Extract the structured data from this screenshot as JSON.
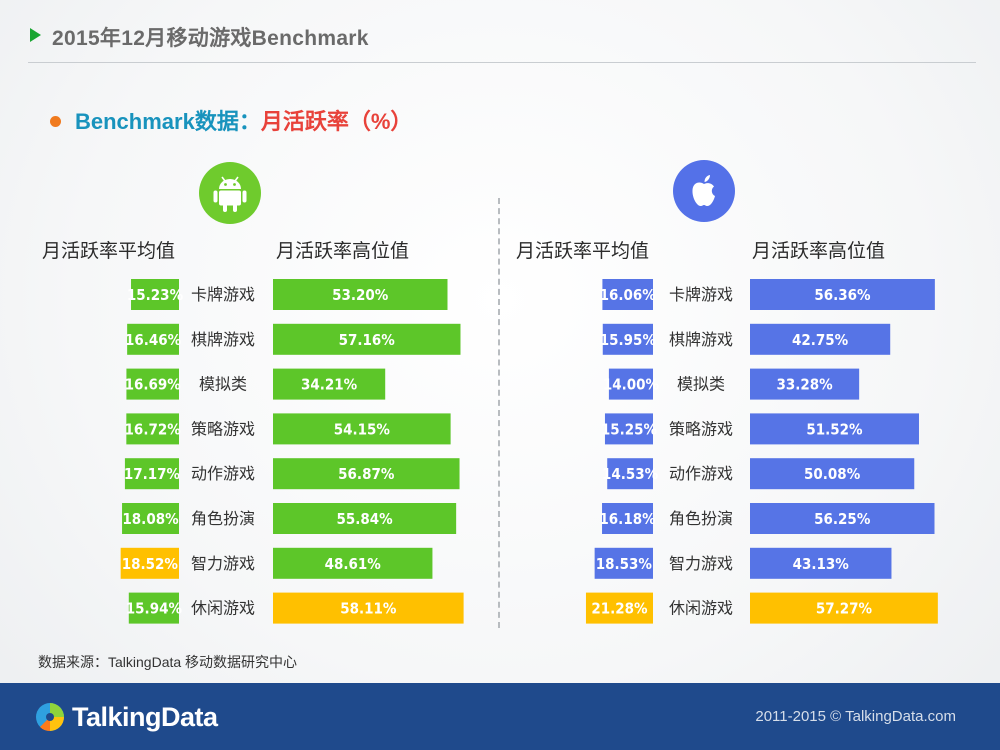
{
  "header": {
    "title": "2015年12月移动游戏Benchmark"
  },
  "section": {
    "prefix": "Benchmark数据：",
    "metric": "月活跃率（%）"
  },
  "colors": {
    "android": "#5dc629",
    "ios": "#5674e6",
    "highlight": "#ffc000"
  },
  "chart_data": [
    {
      "type": "bar",
      "platform_icon": "android-icon",
      "categories": [
        "卡牌游戏",
        "棋牌游戏",
        "模拟类",
        "策略游戏",
        "动作游戏",
        "角色扮演",
        "智力游戏",
        "休闲游戏"
      ],
      "series": [
        {
          "name": "月活跃率平均值",
          "values": [
            15.23,
            16.46,
            16.69,
            16.72,
            17.17,
            18.08,
            18.52,
            15.94
          ],
          "highlight_index": 6
        },
        {
          "name": "月活跃率高位值",
          "values": [
            53.2,
            57.16,
            34.21,
            54.15,
            56.87,
            55.84,
            48.61,
            58.11
          ],
          "highlight_index": 7
        }
      ],
      "unit": "%"
    },
    {
      "type": "bar",
      "platform_icon": "apple-icon",
      "categories": [
        "卡牌游戏",
        "棋牌游戏",
        "模拟类",
        "策略游戏",
        "动作游戏",
        "角色扮演",
        "智力游戏",
        "休闲游戏"
      ],
      "series": [
        {
          "name": "月活跃率平均值",
          "values": [
            16.06,
            15.95,
            14.0,
            15.25,
            14.53,
            16.18,
            18.53,
            21.28
          ],
          "highlight_index": 7
        },
        {
          "name": "月活跃率高位值",
          "values": [
            56.36,
            42.75,
            33.28,
            51.52,
            50.08,
            56.25,
            43.13,
            57.27
          ],
          "highlight_index": 7
        }
      ],
      "unit": "%"
    }
  ],
  "source": "数据来源：TalkingData 移动数据研究中心",
  "footer": {
    "brand": "TalkingData",
    "copyright": "2011-2015 © TalkingData.com"
  }
}
